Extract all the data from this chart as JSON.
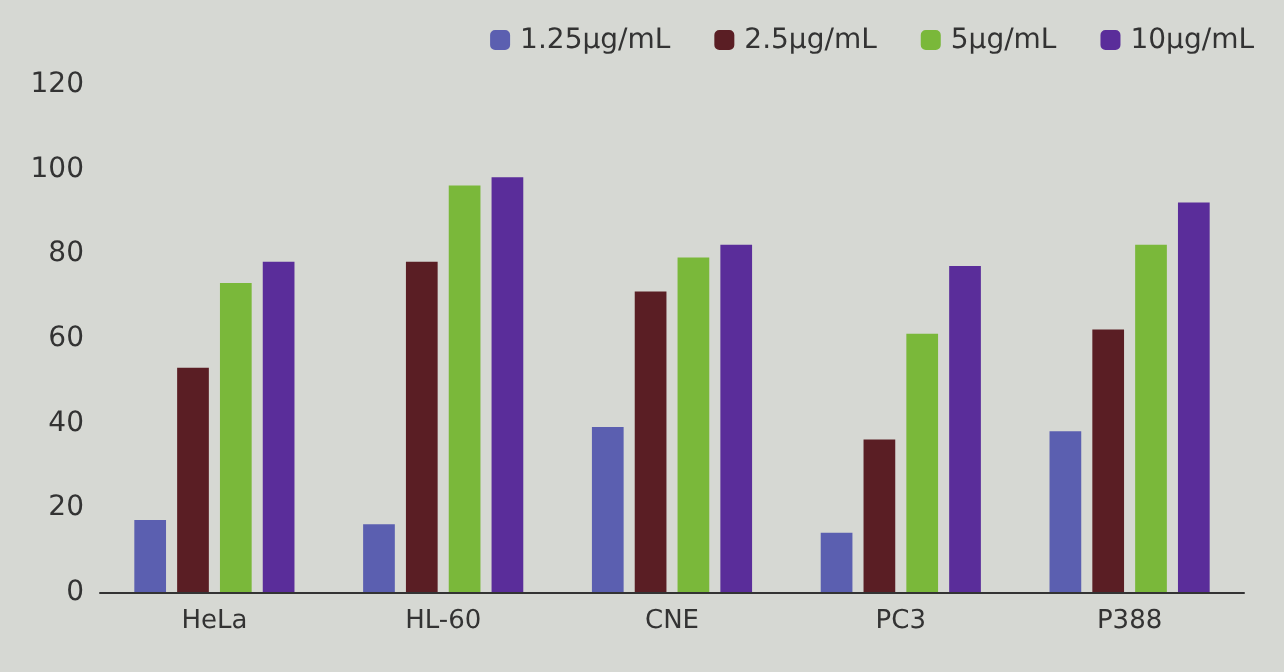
{
  "chart_data": {
    "type": "bar",
    "categories": [
      "HeLa",
      "HL-60",
      "CNE",
      "PC3",
      "P388"
    ],
    "series": [
      {
        "name": "1.25μg/mL",
        "color": "#5b5fb0",
        "values": [
          17,
          16,
          39,
          14,
          38
        ]
      },
      {
        "name": "2.5μg/mL",
        "color": "#5a1e24",
        "values": [
          53,
          78,
          71,
          36,
          62
        ]
      },
      {
        "name": "5μg/mL",
        "color": "#7ab83a",
        "values": [
          73,
          96,
          79,
          61,
          82
        ]
      },
      {
        "name": "10μg/mL",
        "color": "#5a2d9a",
        "values": [
          78,
          98,
          82,
          77,
          92
        ]
      }
    ],
    "ylim": [
      0,
      120
    ],
    "yticks": [
      0,
      20,
      40,
      60,
      80,
      100,
      120
    ],
    "grid": false,
    "legend": "top right"
  }
}
